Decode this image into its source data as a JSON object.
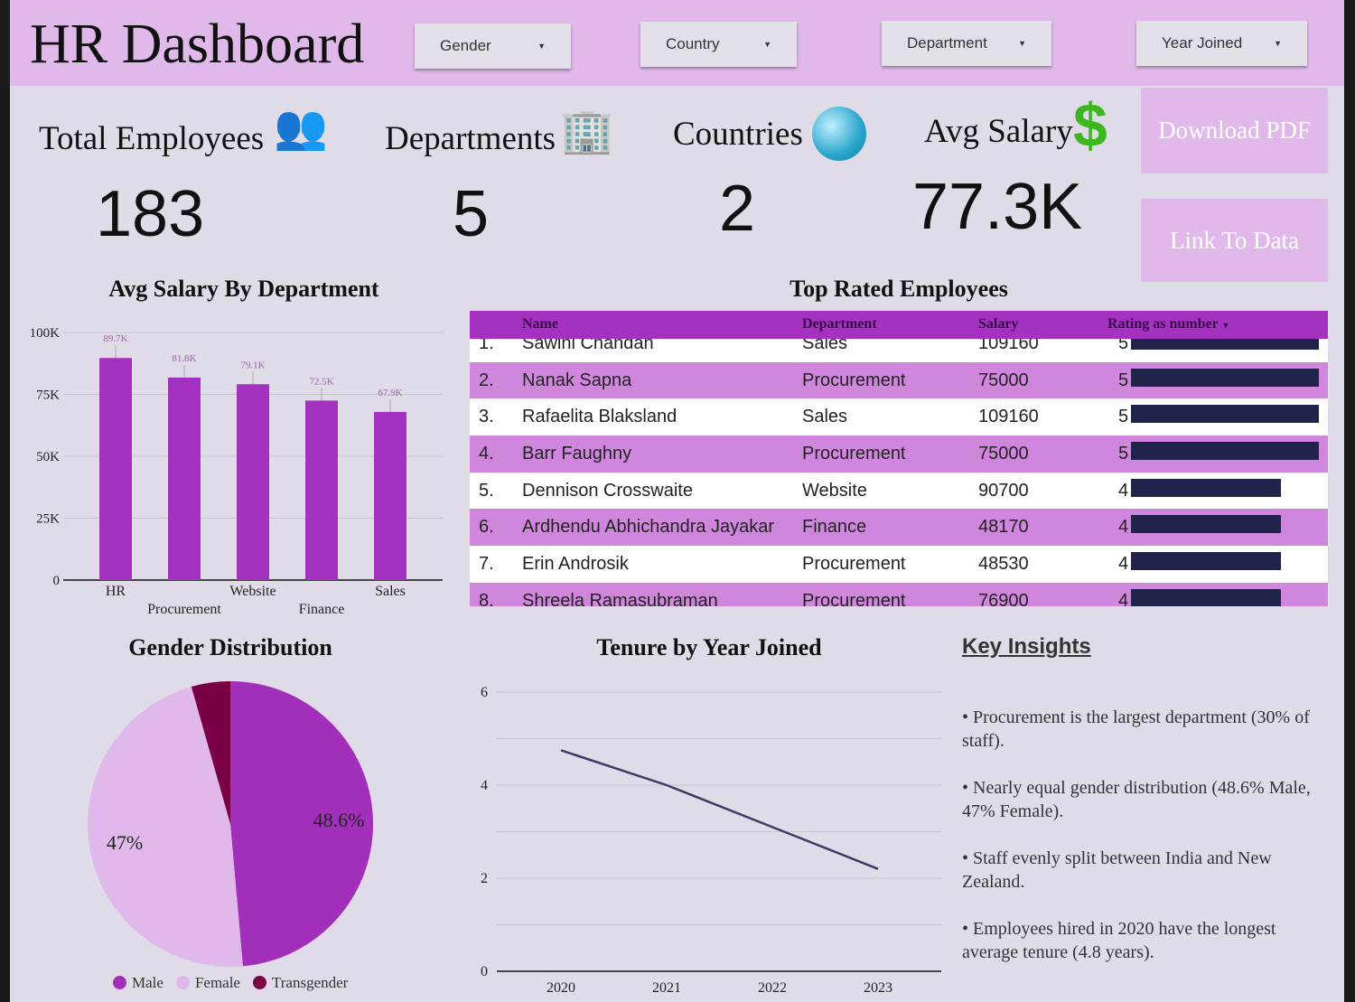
{
  "header": {
    "title": "HR Dashboard",
    "filters": [
      "Gender",
      "Country",
      "Department",
      "Year Joined"
    ]
  },
  "kpis": [
    {
      "label": "Total Employees",
      "value": "183",
      "icon": "people-icon"
    },
    {
      "label": "Departments",
      "value": "5",
      "icon": "building-icon"
    },
    {
      "label": "Countries",
      "value": "2",
      "icon": "globe-icon"
    },
    {
      "label": "Avg Salary",
      "value": "77.3K",
      "icon": "dollar-icon"
    }
  ],
  "buttons": {
    "download": "Download PDF",
    "link": "Link To Data"
  },
  "colors": {
    "accent": "#a431c0",
    "header": "#e0b9ea",
    "background": "#dfdbe7",
    "rating_bar": "#22234a",
    "row_alt": "#cf86dc"
  },
  "table": {
    "title": "Top Rated Employees",
    "columns": [
      "Name",
      "Department",
      "Salary",
      "Rating as number"
    ],
    "rows": [
      {
        "idx": "1.",
        "name": "Sawini Chandan",
        "dept": "Sales",
        "salary": "109160",
        "rating": 5
      },
      {
        "idx": "2.",
        "name": "Nanak Sapna",
        "dept": "Procurement",
        "salary": "75000",
        "rating": 5
      },
      {
        "idx": "3.",
        "name": "Rafaelita Blaksland",
        "dept": "Sales",
        "salary": "109160",
        "rating": 5
      },
      {
        "idx": "4.",
        "name": "Barr Faughny",
        "dept": "Procurement",
        "salary": "75000",
        "rating": 5
      },
      {
        "idx": "5.",
        "name": "Dennison Crosswaite",
        "dept": "Website",
        "salary": "90700",
        "rating": 4
      },
      {
        "idx": "6.",
        "name": "Ardhendu Abhichandra Jayakar",
        "dept": "Finance",
        "salary": "48170",
        "rating": 4
      },
      {
        "idx": "7.",
        "name": "Erin Androsik",
        "dept": "Procurement",
        "salary": "48530",
        "rating": 4
      },
      {
        "idx": "8.",
        "name": "Shreela Ramasubraman",
        "dept": "Procurement",
        "salary": "76900",
        "rating": 4
      }
    ]
  },
  "insights": {
    "title": "Key Insights",
    "items": [
      "• Procurement is the largest department (30% of staff).",
      "• Nearly equal gender distribution (48.6% Male, 47% Female).",
      "• Staff evenly split between India and New Zealand.",
      "• Employees hired in 2020 have the longest average tenure (4.8 years)."
    ]
  },
  "chart_data": [
    {
      "type": "bar",
      "title": "Avg Salary By Department",
      "categories": [
        "HR",
        "Procurement",
        "Website",
        "Finance",
        "Sales"
      ],
      "values": [
        89700,
        81800,
        79100,
        72500,
        67900
      ],
      "data_labels": [
        "89.7K",
        "81.8K",
        "79.1K",
        "72.5K",
        "67.9K"
      ],
      "ylim": [
        0,
        100000
      ],
      "yticks": [
        "0",
        "25K",
        "50K",
        "75K",
        "100K"
      ],
      "grid": true,
      "color": "#a431c0"
    },
    {
      "type": "pie",
      "title": "Gender Distribution",
      "categories": [
        "Male",
        "Female",
        "Transgender"
      ],
      "values": [
        48.6,
        47,
        4.4
      ],
      "data_labels": [
        "48.6%",
        "47%",
        ""
      ],
      "colors": [
        "#a22fba",
        "#e0b8ec",
        "#7a0045"
      ],
      "legend": "bottom"
    },
    {
      "type": "line",
      "title": "Tenure by Year Joined",
      "x": [
        "2020",
        "2021",
        "2022",
        "2023"
      ],
      "values": [
        4.75,
        4.0,
        3.1,
        2.2
      ],
      "ylim": [
        0,
        6
      ],
      "yticks": [
        "0",
        "2",
        "4",
        "6"
      ],
      "grid": true,
      "color": "#3d3a6a"
    }
  ]
}
